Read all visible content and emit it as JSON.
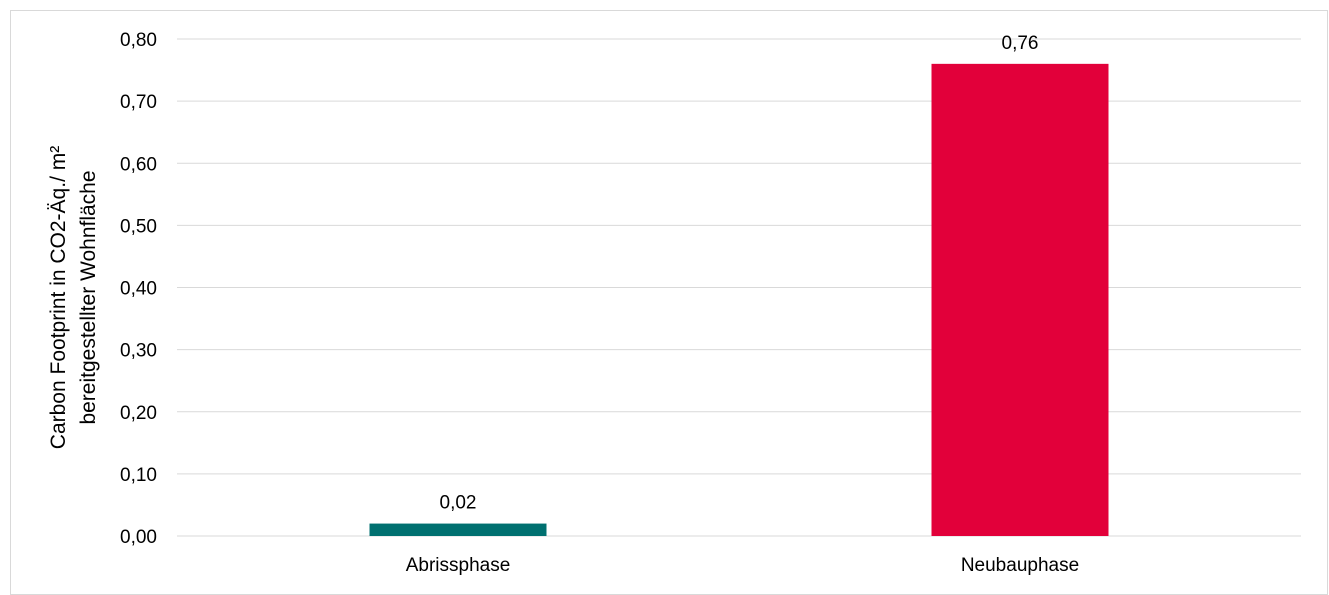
{
  "chart_data": {
    "type": "bar",
    "categories": [
      "Abrissphase",
      "Neubauphase"
    ],
    "values": [
      0.02,
      0.76
    ],
    "value_labels": [
      "0,02",
      "0,76"
    ],
    "colors": [
      "#007070",
      "#e2003a"
    ],
    "title": "",
    "xlabel": "",
    "ylabel_lines": [
      "Carbon Footprint in CO2-Äq./ m²",
      "bereitgestellter Wohnfläche"
    ],
    "ylim": [
      0,
      0.8
    ],
    "yticks": [
      0,
      0.1,
      0.2,
      0.3,
      0.4,
      0.5,
      0.6,
      0.7,
      0.8
    ],
    "ytick_labels": [
      "0,00",
      "0,10",
      "0,20",
      "0,30",
      "0,40",
      "0,50",
      "0,60",
      "0,70",
      "0,80"
    ],
    "grid": true,
    "gridline_color": "#d9d9d9",
    "legend": "none"
  }
}
